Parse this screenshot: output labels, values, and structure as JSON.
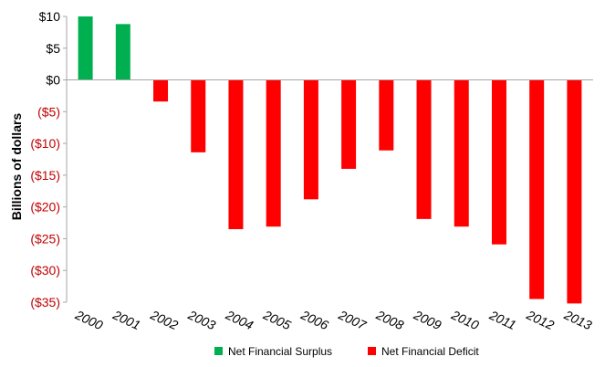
{
  "chart_data": {
    "type": "bar",
    "categories": [
      "2000",
      "2001",
      "2002",
      "2003",
      "2004",
      "2005",
      "2006",
      "2007",
      "2008",
      "2009",
      "2010",
      "2011",
      "2012",
      "2013"
    ],
    "values": [
      10,
      8.8,
      -3.4,
      -11.4,
      -23.5,
      -23.1,
      -18.8,
      -14.0,
      -11.1,
      -21.9,
      -23.1,
      -25.9,
      -34.5,
      -35.2
    ],
    "ylabel": "Billions of dollars",
    "ylim": [
      -35,
      10
    ],
    "yticks": [
      10,
      5,
      0,
      -5,
      -10,
      -15,
      -20,
      -25,
      -30,
      -35
    ],
    "ytick_labels": [
      "$10",
      "$5",
      "$0",
      "($5)",
      "($10)",
      "($15)",
      "($20)",
      "($25)",
      "($30)",
      "($35)"
    ],
    "grid": false,
    "legend_position": "bottom",
    "legend": [
      {
        "label": "Net Financial Surplus",
        "color": "#00b050"
      },
      {
        "label": "Net Financial Deficit",
        "color": "#ff0000"
      }
    ],
    "colors": {
      "positive": "#00b050",
      "negative": "#ff0000",
      "positive_tick": "#000000",
      "negative_tick": "#c00000"
    }
  }
}
